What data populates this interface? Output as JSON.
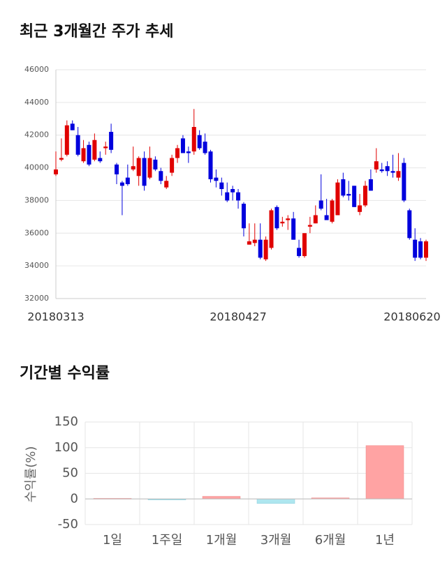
{
  "chart_data": [
    {
      "type": "candlestick",
      "title": "최근 3개월간 주가 추세",
      "categories": [
        "20180313",
        null,
        null,
        null,
        null,
        null,
        null,
        null,
        null,
        null,
        null,
        null,
        null,
        null,
        null,
        null,
        null,
        null,
        null,
        null,
        null,
        null,
        null,
        null,
        null,
        null,
        null,
        null,
        null,
        null,
        null,
        null,
        null,
        "20180427",
        null,
        null,
        null,
        null,
        null,
        null,
        null,
        null,
        null,
        null,
        null,
        null,
        null,
        null,
        null,
        null,
        null,
        null,
        null,
        null,
        null,
        null,
        null,
        null,
        null,
        null,
        null,
        null,
        null,
        null,
        null,
        null,
        null,
        "20180620"
      ],
      "open": [
        39600,
        40500,
        40800,
        42700,
        42000,
        40400,
        41400,
        40500,
        40600,
        41200,
        42200,
        40200,
        39100,
        39400,
        39900,
        39500,
        40600,
        39400,
        40500,
        39800,
        38800,
        39700,
        40600,
        41800,
        41000,
        41000,
        42000,
        41600,
        41000,
        39400,
        39100,
        38500,
        38700,
        38500,
        37800,
        35300,
        35400,
        35600,
        34400,
        35100,
        37600,
        36600,
        36800,
        36900,
        35100,
        34600,
        36400,
        36600,
        38000,
        37100,
        36700,
        37100,
        39300,
        38400,
        38900,
        37300,
        37700,
        39300,
        39900,
        39900,
        40100,
        39800,
        39400,
        40300,
        37400,
        35600,
        35500,
        34500
      ],
      "high": [
        41000,
        41800,
        42900,
        42900,
        42500,
        41700,
        41600,
        42100,
        41000,
        41600,
        42700,
        40300,
        39200,
        40200,
        41300,
        40700,
        41000,
        41300,
        40700,
        40000,
        39500,
        40800,
        41400,
        42000,
        41300,
        43600,
        42300,
        42100,
        41100,
        39900,
        39400,
        39100,
        38900,
        38700,
        37900,
        36600,
        36600,
        36600,
        35800,
        37500,
        37700,
        37000,
        37100,
        37300,
        35600,
        36000,
        37000,
        37700,
        39600,
        38100,
        38100,
        39300,
        39700,
        39200,
        38900,
        38400,
        39200,
        39900,
        41200,
        40300,
        40400,
        40800,
        40900,
        40600,
        37500,
        36300,
        35700,
        35600
      ],
      "low": [
        39500,
        40400,
        40700,
        42300,
        40700,
        40300,
        40100,
        40400,
        40300,
        40800,
        40900,
        39000,
        37100,
        38900,
        39800,
        38900,
        38600,
        39300,
        39800,
        39000,
        38700,
        39500,
        40300,
        40900,
        40300,
        40800,
        41100,
        40800,
        39100,
        38800,
        38300,
        37900,
        38000,
        37500,
        35800,
        35300,
        35200,
        34400,
        34300,
        35000,
        36200,
        36400,
        36200,
        35600,
        34500,
        34500,
        36000,
        36600,
        37400,
        36900,
        36600,
        37100,
        38200,
        38000,
        37600,
        37100,
        37600,
        38600,
        39700,
        39700,
        39500,
        39400,
        39200,
        37900,
        35600,
        34300,
        34400,
        34300
      ],
      "close": [
        39900,
        40600,
        42600,
        42300,
        40800,
        41200,
        40200,
        41700,
        40400,
        41300,
        41100,
        39600,
        38900,
        39000,
        40100,
        40600,
        38900,
        40600,
        39900,
        39200,
        39200,
        40600,
        41200,
        40900,
        40900,
        42500,
        41200,
        40900,
        39300,
        39200,
        38700,
        38000,
        38500,
        38000,
        36300,
        35500,
        35600,
        34500,
        35600,
        37400,
        36300,
        36700,
        36900,
        35600,
        34600,
        36000,
        36500,
        37100,
        37500,
        36800,
        38000,
        39100,
        38300,
        38300,
        37600,
        37700,
        38900,
        38600,
        40400,
        39800,
        39800,
        39700,
        39800,
        38000,
        35700,
        34500,
        34500,
        35500
      ],
      "up_color": "#e00000",
      "down_color": "#0000dd",
      "ylim": [
        32000,
        46000
      ],
      "yticks": [
        32000,
        34000,
        36000,
        38000,
        40000,
        42000,
        44000,
        46000
      ],
      "grid": true
    },
    {
      "type": "bar",
      "title": "기간별 수익률",
      "ylabel": "수익률(%)",
      "categories": [
        "1일",
        "1주일",
        "1개월",
        "3개월",
        "6개월",
        "1년"
      ],
      "values": [
        1,
        -2,
        5,
        -9,
        2,
        104
      ],
      "positive_color": "#ffa3a3",
      "negative_color": "#aee6ef",
      "ylim": [
        -50,
        150
      ],
      "yticks": [
        -50,
        0,
        50,
        100,
        150
      ],
      "grid": true
    }
  ]
}
